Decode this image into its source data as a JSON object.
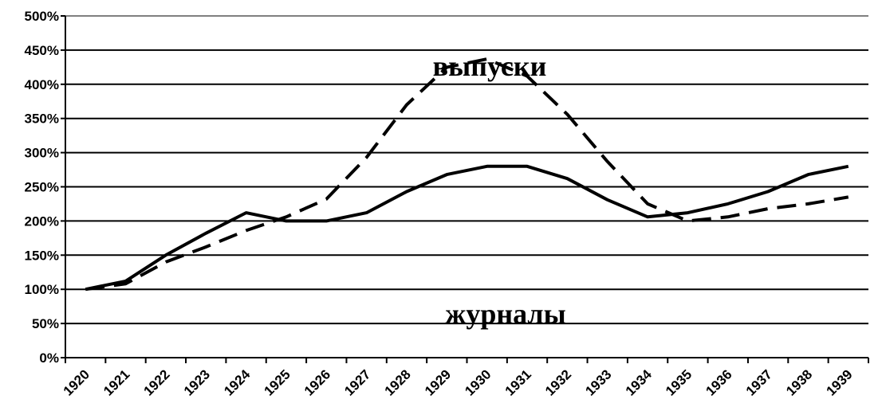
{
  "chart_data": {
    "type": "line",
    "x": [
      "1920",
      "1921",
      "1922",
      "1923",
      "1924",
      "1925",
      "1926",
      "1927",
      "1928",
      "1929",
      "1930",
      "1931",
      "1932",
      "1933",
      "1934",
      "1935",
      "1936",
      "1937",
      "1938",
      "1939"
    ],
    "ylim": [
      0,
      500
    ],
    "y_ticks": [
      "0%",
      "50%",
      "100%",
      "150%",
      "200%",
      "250%",
      "300%",
      "350%",
      "400%",
      "450%",
      "500%"
    ],
    "grid": true,
    "series": [
      {
        "name": "журналы",
        "style": "solid",
        "color": "#000000",
        "values": [
          100,
          112,
          150,
          182,
          212,
          200,
          200,
          212,
          243,
          268,
          280,
          280,
          262,
          231,
          206,
          212,
          225,
          243,
          268,
          280
        ]
      },
      {
        "name": "выпуски",
        "style": "dashed",
        "color": "#000000",
        "values": [
          100,
          108,
          140,
          162,
          186,
          206,
          232,
          293,
          370,
          425,
          437,
          412,
          356,
          287,
          225,
          200,
          206,
          218,
          225,
          235
        ]
      }
    ]
  }
}
